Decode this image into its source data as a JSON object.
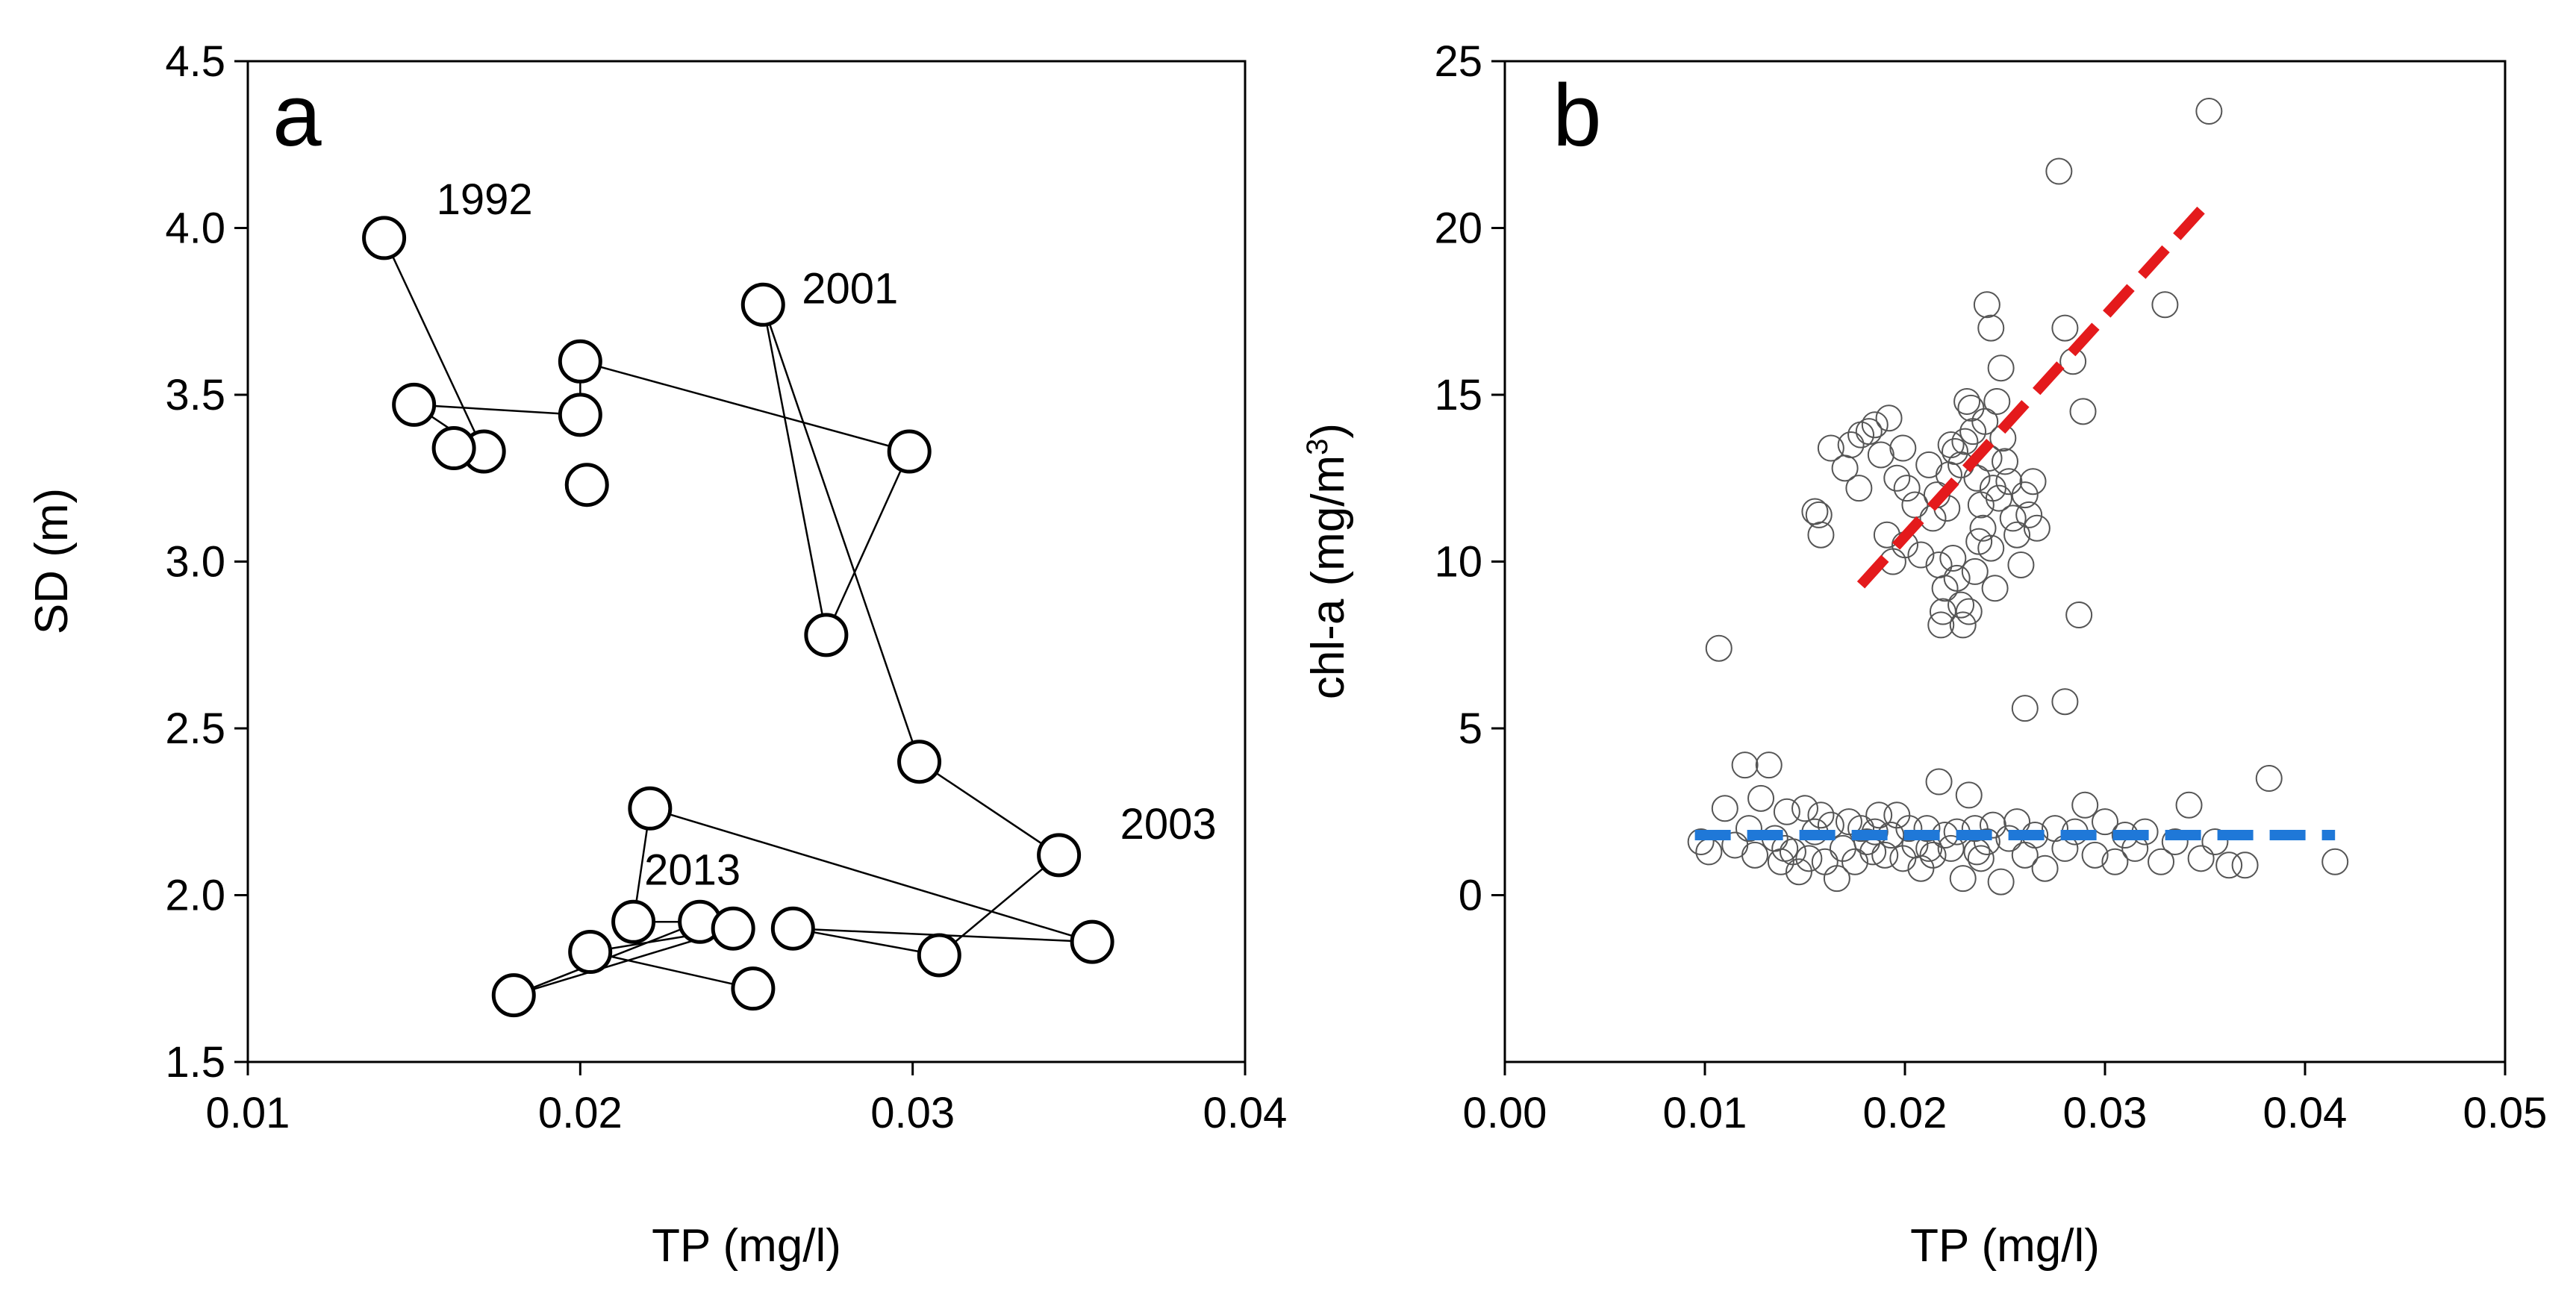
{
  "chart_data": [
    {
      "type": "scatter",
      "panel_label": "a",
      "xlabel": "TP (mg/l)",
      "ylabel": "SD (m)",
      "xlim": [
        0.01,
        0.04
      ],
      "ylim": [
        1.5,
        4.5
      ],
      "xticks": [
        "0.01",
        "0.02",
        "0.03",
        "0.04"
      ],
      "yticks": [
        "1.5",
        "2.0",
        "2.5",
        "3.0",
        "3.5",
        "4.0",
        "4.5"
      ],
      "connected": true,
      "points": [
        {
          "x": 0.0141,
          "y": 3.97,
          "label": "1992"
        },
        {
          "x": 0.0171,
          "y": 3.33
        },
        {
          "x": 0.015,
          "y": 3.47
        },
        {
          "x": 0.02,
          "y": 3.44
        },
        {
          "x": 0.02,
          "y": 3.6
        },
        {
          "x": 0.0299,
          "y": 3.33
        },
        {
          "x": 0.0274,
          "y": 2.78
        },
        {
          "x": 0.0255,
          "y": 3.77,
          "label": "2001"
        },
        {
          "x": 0.0302,
          "y": 2.4
        },
        {
          "x": 0.0344,
          "y": 2.12,
          "label": "2003"
        },
        {
          "x": 0.0308,
          "y": 1.82
        },
        {
          "x": 0.0264,
          "y": 1.9
        },
        {
          "x": 0.0354,
          "y": 1.86
        },
        {
          "x": 0.0221,
          "y": 2.26
        },
        {
          "x": 0.0216,
          "y": 1.92
        },
        {
          "x": 0.0236,
          "y": 1.92,
          "label": "2013"
        },
        {
          "x": 0.018,
          "y": 1.7
        },
        {
          "x": 0.0246,
          "y": 1.9
        },
        {
          "x": 0.0203,
          "y": 1.83
        },
        {
          "x": 0.0252,
          "y": 1.72
        }
      ],
      "extra_points": [
        {
          "x": 0.0162,
          "y": 3.34
        },
        {
          "x": 0.0202,
          "y": 3.23
        }
      ]
    },
    {
      "type": "scatter",
      "panel_label": "b",
      "xlabel": "TP (mg/l)",
      "ylabel": "chl-a (mg/m3)",
      "ylabel_main": "chl-a (mg/m",
      "ylabel_sup": "3",
      "ylabel_end": ")",
      "xlim": [
        0.0,
        0.05
      ],
      "ylim": [
        -5,
        25
      ],
      "xticks": [
        "0.00",
        "0.01",
        "0.02",
        "0.03",
        "0.04",
        "0.05"
      ],
      "yticks": [
        "0",
        "5",
        "10",
        "15",
        "20",
        "25"
      ],
      "trend_lines": [
        {
          "color": "#e41a1c",
          "x": [
            0.0178,
            0.0352
          ],
          "y": [
            9.3,
            20.8
          ]
        },
        {
          "color": "#1f78d8",
          "x": [
            0.0095,
            0.0415
          ],
          "y": [
            1.8,
            1.8
          ]
        }
      ],
      "points_upper": [
        [
          0.0107,
          7.4
        ],
        [
          0.0155,
          11.5
        ],
        [
          0.0158,
          10.8
        ],
        [
          0.0157,
          11.4
        ],
        [
          0.0163,
          13.4
        ],
        [
          0.017,
          12.8
        ],
        [
          0.0173,
          13.5
        ],
        [
          0.0177,
          12.2
        ],
        [
          0.0178,
          13.8
        ],
        [
          0.0182,
          13.9
        ],
        [
          0.0185,
          14.1
        ],
        [
          0.0188,
          13.2
        ],
        [
          0.0192,
          14.3
        ],
        [
          0.0196,
          12.5
        ],
        [
          0.0199,
          13.4
        ],
        [
          0.0201,
          12.2
        ],
        [
          0.0191,
          10.8
        ],
        [
          0.0194,
          10.0
        ],
        [
          0.02,
          10.5
        ],
        [
          0.0205,
          11.7
        ],
        [
          0.0208,
          10.2
        ],
        [
          0.0212,
          12.9
        ],
        [
          0.0214,
          11.3
        ],
        [
          0.0216,
          12.0
        ],
        [
          0.0217,
          9.9
        ],
        [
          0.0218,
          8.1
        ],
        [
          0.022,
          9.2
        ],
        [
          0.0222,
          12.6
        ],
        [
          0.0225,
          13.3
        ],
        [
          0.0228,
          12.9
        ],
        [
          0.023,
          13.6
        ],
        [
          0.0231,
          14.8
        ],
        [
          0.0233,
          14.6
        ],
        [
          0.0234,
          13.9
        ],
        [
          0.0236,
          12.5
        ],
        [
          0.0238,
          11.7
        ],
        [
          0.024,
          14.2
        ],
        [
          0.0242,
          13.1
        ],
        [
          0.0244,
          12.2
        ],
        [
          0.0246,
          14.8
        ],
        [
          0.0248,
          15.8
        ],
        [
          0.025,
          13.0
        ],
        [
          0.0252,
          12.4
        ],
        [
          0.0254,
          11.3
        ],
        [
          0.0256,
          10.8
        ],
        [
          0.0258,
          9.9
        ],
        [
          0.026,
          12.0
        ],
        [
          0.0262,
          11.4
        ],
        [
          0.0264,
          12.4
        ],
        [
          0.0266,
          11.0
        ],
        [
          0.0224,
          10.1
        ],
        [
          0.0226,
          9.5
        ],
        [
          0.0228,
          8.7
        ],
        [
          0.0232,
          8.5
        ],
        [
          0.0235,
          9.7
        ],
        [
          0.0237,
          10.6
        ],
        [
          0.0239,
          11.0
        ],
        [
          0.0243,
          10.4
        ],
        [
          0.0245,
          9.2
        ],
        [
          0.0221,
          11.6
        ],
        [
          0.0223,
          13.5
        ],
        [
          0.0247,
          11.9
        ],
        [
          0.0249,
          13.7
        ],
        [
          0.0241,
          17.7
        ],
        [
          0.0243,
          17.0
        ],
        [
          0.0277,
          21.7
        ],
        [
          0.028,
          17.0
        ],
        [
          0.0284,
          16.0
        ],
        [
          0.0289,
          14.5
        ],
        [
          0.033,
          17.7
        ],
        [
          0.0352,
          23.5
        ],
        [
          0.0287,
          8.4
        ],
        [
          0.026,
          5.6
        ],
        [
          0.028,
          5.8
        ],
        [
          0.0229,
          8.1
        ],
        [
          0.0219,
          8.5
        ]
      ],
      "points_lower": [
        [
          0.0098,
          1.6
        ],
        [
          0.0102,
          1.3
        ],
        [
          0.011,
          2.6
        ],
        [
          0.0115,
          1.5
        ],
        [
          0.012,
          3.9
        ],
        [
          0.0122,
          2.0
        ],
        [
          0.0125,
          1.2
        ],
        [
          0.0128,
          2.9
        ],
        [
          0.0132,
          3.9
        ],
        [
          0.0135,
          1.7
        ],
        [
          0.0138,
          1.0
        ],
        [
          0.0141,
          2.5
        ],
        [
          0.0144,
          1.3
        ],
        [
          0.0147,
          0.7
        ],
        [
          0.015,
          2.6
        ],
        [
          0.0152,
          1.1
        ],
        [
          0.0155,
          1.9
        ],
        [
          0.0158,
          2.4
        ],
        [
          0.016,
          1.0
        ],
        [
          0.0163,
          2.1
        ],
        [
          0.0166,
          0.5
        ],
        [
          0.0169,
          1.4
        ],
        [
          0.0172,
          2.2
        ],
        [
          0.0175,
          1.0
        ],
        [
          0.0178,
          2.0
        ],
        [
          0.0181,
          1.6
        ],
        [
          0.0184,
          1.3
        ],
        [
          0.0187,
          2.4
        ],
        [
          0.019,
          1.2
        ],
        [
          0.0193,
          1.8
        ],
        [
          0.0196,
          2.4
        ],
        [
          0.0199,
          1.1
        ],
        [
          0.0202,
          2.0
        ],
        [
          0.0205,
          1.5
        ],
        [
          0.0208,
          0.8
        ],
        [
          0.0211,
          2.0
        ],
        [
          0.0214,
          1.2
        ],
        [
          0.0217,
          3.4
        ],
        [
          0.022,
          1.8
        ],
        [
          0.0223,
          1.4
        ],
        [
          0.0226,
          1.9
        ],
        [
          0.0229,
          0.5
        ],
        [
          0.0232,
          3.0
        ],
        [
          0.0235,
          2.0
        ],
        [
          0.0238,
          1.1
        ],
        [
          0.0241,
          1.6
        ],
        [
          0.0244,
          2.1
        ],
        [
          0.0248,
          0.4
        ],
        [
          0.0252,
          1.7
        ],
        [
          0.0256,
          2.2
        ],
        [
          0.026,
          1.2
        ],
        [
          0.0265,
          1.8
        ],
        [
          0.027,
          0.8
        ],
        [
          0.0275,
          2.0
        ],
        [
          0.028,
          1.4
        ],
        [
          0.0285,
          1.9
        ],
        [
          0.029,
          2.7
        ],
        [
          0.0295,
          1.2
        ],
        [
          0.03,
          2.2
        ],
        [
          0.0305,
          1.0
        ],
        [
          0.031,
          1.8
        ],
        [
          0.0315,
          1.4
        ],
        [
          0.032,
          1.9
        ],
        [
          0.0328,
          1.0
        ],
        [
          0.0335,
          1.6
        ],
        [
          0.0342,
          2.7
        ],
        [
          0.0348,
          1.1
        ],
        [
          0.0355,
          1.6
        ],
        [
          0.0362,
          0.9
        ],
        [
          0.037,
          0.9
        ],
        [
          0.0382,
          3.5
        ],
        [
          0.0415,
          1.0
        ],
        [
          0.014,
          1.4
        ],
        [
          0.0185,
          1.9
        ],
        [
          0.0212,
          1.4
        ],
        [
          0.0236,
          1.3
        ]
      ]
    }
  ]
}
